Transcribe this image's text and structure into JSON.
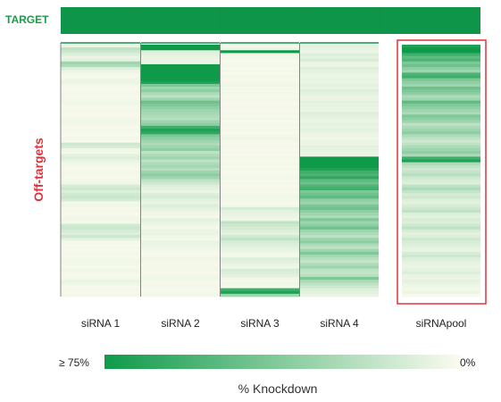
{
  "chart_data": {
    "type": "heatmap",
    "row_labels": {
      "target": "TARGET",
      "offtargets": "Off-targets"
    },
    "columns": [
      "siRNA 1",
      "siRNA 2",
      "siRNA 3",
      "siRNA 4",
      "siRNApool"
    ],
    "highlighted_column": "siRNApool",
    "target_knockdown": [
      100,
      100,
      100,
      100,
      100
    ],
    "offtarget_knockdown": [
      [
        5,
        20,
        15,
        10,
        5,
        8,
        30,
        25,
        10,
        5,
        3,
        2,
        4,
        5,
        3,
        2,
        2,
        3,
        2,
        3,
        4,
        3,
        2,
        3,
        2,
        2,
        3,
        4,
        3,
        2,
        3,
        2,
        2,
        3,
        2,
        15,
        12,
        4,
        3,
        8,
        10,
        6,
        4,
        3,
        2,
        3,
        3,
        2,
        3,
        4,
        12,
        15,
        10,
        14,
        16,
        12,
        3,
        4,
        2,
        3,
        2,
        3,
        4,
        3,
        14,
        16,
        12,
        10,
        15,
        8,
        3,
        2,
        3,
        2,
        3,
        2,
        3,
        4,
        3,
        2,
        4,
        3,
        2,
        3,
        5,
        4,
        2,
        3,
        2,
        3
      ],
      [
        95,
        90,
        10,
        8,
        6,
        5,
        5,
        85,
        80,
        88,
        92,
        82,
        75,
        70,
        40,
        30,
        35,
        25,
        20,
        30,
        45,
        40,
        35,
        30,
        28,
        25,
        22,
        30,
        35,
        60,
        70,
        65,
        40,
        35,
        30,
        25,
        30,
        35,
        20,
        25,
        30,
        20,
        25,
        28,
        22,
        30,
        35,
        30,
        20,
        15,
        10,
        8,
        5,
        10,
        12,
        8,
        6,
        10,
        8,
        5,
        4,
        3,
        8,
        6,
        4,
        3,
        5,
        6,
        4,
        3,
        6,
        5,
        4,
        3,
        2,
        3,
        4,
        3,
        2,
        3,
        3,
        2,
        3,
        4,
        3,
        2,
        3,
        2,
        3,
        4
      ],
      [
        3,
        5,
        85,
        4,
        3,
        2,
        2,
        3,
        2,
        3,
        2,
        3,
        2,
        3,
        4,
        3,
        2,
        3,
        2,
        3,
        2,
        2,
        3,
        2,
        3,
        2,
        3,
        2,
        3,
        2,
        3,
        2,
        3,
        4,
        3,
        2,
        3,
        2,
        3,
        2,
        3,
        2,
        3,
        2,
        3,
        2,
        2,
        3,
        2,
        3,
        2,
        3,
        2,
        3,
        4,
        3,
        2,
        3,
        12,
        8,
        6,
        5,
        4,
        20,
        15,
        12,
        10,
        8,
        14,
        18,
        12,
        10,
        8,
        6,
        4,
        3,
        10,
        8,
        6,
        4,
        12,
        10,
        8,
        4,
        3,
        4,
        3,
        60,
        70,
        30
      ],
      [
        8,
        6,
        5,
        10,
        8,
        12,
        6,
        5,
        10,
        8,
        6,
        5,
        7,
        5,
        8,
        6,
        10,
        8,
        6,
        5,
        8,
        7,
        6,
        5,
        10,
        8,
        6,
        5,
        7,
        6,
        8,
        6,
        5,
        4,
        6,
        5,
        8,
        7,
        6,
        5,
        85,
        80,
        90,
        75,
        70,
        60,
        55,
        65,
        50,
        45,
        55,
        60,
        40,
        45,
        50,
        35,
        30,
        40,
        45,
        35,
        30,
        25,
        40,
        30,
        35,
        45,
        30,
        25,
        20,
        30,
        35,
        25,
        20,
        30,
        40,
        28,
        22,
        18,
        25,
        30,
        20,
        18,
        22,
        40,
        25,
        20,
        15,
        10,
        8,
        5
      ],
      [
        70,
        85,
        90,
        60,
        50,
        55,
        40,
        45,
        35,
        30,
        55,
        60,
        40,
        35,
        30,
        45,
        40,
        35,
        25,
        30,
        50,
        40,
        35,
        30,
        25,
        40,
        35,
        30,
        20,
        25,
        30,
        35,
        25,
        20,
        15,
        20,
        25,
        30,
        35,
        25,
        60,
        70,
        25,
        20,
        15,
        18,
        22,
        15,
        12,
        10,
        20,
        25,
        18,
        12,
        15,
        10,
        8,
        12,
        15,
        20,
        10,
        8,
        12,
        10,
        15,
        20,
        12,
        8,
        10,
        15,
        12,
        10,
        8,
        6,
        12,
        15,
        10,
        8,
        6,
        5,
        8,
        10,
        6,
        5,
        8,
        5,
        4,
        3,
        5,
        2
      ]
    ],
    "legend": {
      "min_label": "≥ 75%",
      "max_label": "0%",
      "title": "% Knockdown"
    },
    "colors": {
      "high": "#0f9a4a",
      "low": "#fcfcf0",
      "target": "#0e9549",
      "highlight_box": "#e0323c",
      "target_text": "#1d9a4a",
      "offtarget_text": "#e0323c"
    }
  }
}
